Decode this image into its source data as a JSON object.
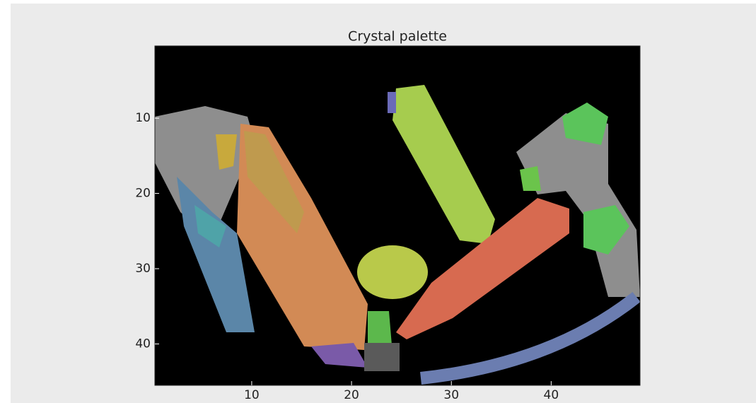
{
  "chart_data": {
    "type": "image",
    "title": "Crystal palette",
    "xlim": [
      0.3,
      48.9
    ],
    "ylim": [
      45.5,
      0.4
    ],
    "xticks": [
      10,
      20,
      30,
      40
    ],
    "yticks": [
      10,
      20,
      30,
      40
    ]
  }
}
